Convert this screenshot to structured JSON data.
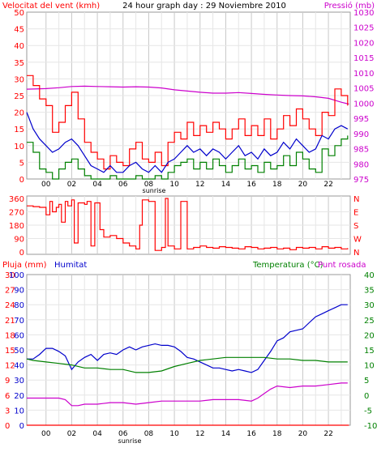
{
  "chart_data": [
    {
      "type": "line",
      "title": "24 hour graph day : 29 Noviembre 2010",
      "left_axis_label": "Velocitat del vent (kmh)",
      "right_axis_label": "Pressió (mb)",
      "left_ylim": [
        0,
        50
      ],
      "left_ticks": [
        "0",
        "5",
        "10",
        "15",
        "20",
        "25",
        "30",
        "35",
        "40",
        "45",
        "50"
      ],
      "right_ylim": [
        975,
        1030
      ],
      "right_ticks": [
        "975",
        "980",
        "985",
        "990",
        "995",
        "1000",
        "1005",
        "1010",
        "1015",
        "1020",
        "1025",
        "1030"
      ],
      "x_ticks": [
        "00",
        "02",
        "04",
        "06",
        "08",
        "10",
        "12",
        "14",
        "16",
        "18",
        "20",
        "22"
      ],
      "sunrise_label": "sunrise",
      "grid": true,
      "series": [
        {
          "axis": "right",
          "color": "#cc00cc",
          "x": [
            -1.5,
            0,
            1,
            2,
            3,
            4,
            5,
            6,
            7,
            8,
            9,
            10,
            11,
            12,
            13,
            14,
            15,
            16,
            17,
            18,
            19,
            20,
            21,
            22,
            23,
            23.6
          ],
          "y": [
            1004.6,
            1004.8,
            1005.1,
            1005.5,
            1005.6,
            1005.5,
            1005.4,
            1005.3,
            1005.4,
            1005.3,
            1005.0,
            1004.4,
            1004.0,
            1003.6,
            1003.3,
            1003.3,
            1003.5,
            1003.2,
            1002.9,
            1002.7,
            1002.5,
            1002.4,
            1002.1,
            1001.6,
            1000.3,
            999.7
          ]
        },
        {
          "axis": "left",
          "color": "#ff0000",
          "x": [
            -1.5,
            -1,
            -0.5,
            0,
            0.5,
            1,
            1.5,
            2,
            2.5,
            3,
            3.5,
            4,
            4.5,
            5,
            5.5,
            6,
            6.5,
            7,
            7.5,
            8,
            8.5,
            9,
            9.5,
            10,
            10.5,
            11,
            11.5,
            12,
            12.5,
            13,
            13.5,
            14,
            14.5,
            15,
            15.5,
            16,
            16.5,
            17,
            17.5,
            18,
            18.5,
            19,
            19.5,
            20,
            20.5,
            21,
            21.5,
            22,
            22.5,
            23,
            23.5
          ],
          "y": [
            31,
            28,
            24,
            22,
            14,
            17,
            22,
            26,
            18,
            11,
            8,
            6,
            3,
            7,
            5,
            4,
            9,
            11,
            6,
            5,
            8,
            4,
            11,
            14,
            12,
            17,
            13,
            16,
            14,
            17,
            15,
            12,
            15,
            18,
            13,
            16,
            13,
            18,
            12,
            15,
            19,
            16,
            21,
            18,
            15,
            13,
            20,
            19,
            27,
            25,
            22
          ]
        },
        {
          "axis": "left",
          "color": "#0000cc",
          "x": [
            -1.5,
            -1,
            -0.5,
            0,
            0.5,
            1,
            1.5,
            2,
            2.5,
            3,
            3.5,
            4,
            4.5,
            5,
            5.5,
            6,
            6.5,
            7,
            7.5,
            8,
            8.5,
            9,
            9.5,
            10,
            10.5,
            11,
            11.5,
            12,
            12.5,
            13,
            13.5,
            14,
            14.5,
            15,
            15.5,
            16,
            16.5,
            17,
            17.5,
            18,
            18.5,
            19,
            19.5,
            20,
            20.5,
            21,
            21.5,
            22,
            22.5,
            23,
            23.5
          ],
          "y": [
            20,
            15,
            12,
            10,
            8,
            9,
            11,
            12,
            10,
            7,
            4,
            3,
            2,
            4,
            2,
            2,
            4,
            5,
            3,
            2,
            4,
            2,
            5,
            6,
            8,
            10,
            8,
            9,
            7,
            9,
            8,
            6,
            8,
            10,
            7,
            8,
            6,
            9,
            7,
            8,
            11,
            9,
            12,
            10,
            8,
            9,
            13,
            12,
            15,
            16,
            15
          ]
        },
        {
          "axis": "left",
          "color": "#008000",
          "x": [
            -1.5,
            -1,
            -0.5,
            0,
            0.5,
            1,
            1.5,
            2,
            2.5,
            3,
            3.5,
            4,
            4.5,
            5,
            5.5,
            6,
            6.5,
            7,
            7.5,
            8,
            8.5,
            9,
            9.5,
            10,
            10.5,
            11,
            11.5,
            12,
            12.5,
            13,
            13.5,
            14,
            14.5,
            15,
            15.5,
            16,
            16.5,
            17,
            17.5,
            18,
            18.5,
            19,
            19.5,
            20,
            20.5,
            21,
            21.5,
            22,
            22.5,
            23,
            23.5
          ],
          "y": [
            11,
            8,
            3,
            2,
            0,
            3,
            5,
            6,
            3,
            1,
            0,
            0,
            0,
            1,
            0,
            0,
            0,
            1,
            0,
            0,
            1,
            0,
            2,
            4,
            5,
            6,
            3,
            5,
            3,
            6,
            4,
            2,
            4,
            6,
            3,
            4,
            2,
            5,
            3,
            4,
            7,
            4,
            8,
            6,
            3,
            2,
            9,
            7,
            10,
            12,
            13
          ]
        }
      ]
    },
    {
      "type": "line",
      "ylim": [
        0,
        360
      ],
      "left_ticks": [
        "0",
        "90",
        "180",
        "270",
        "360"
      ],
      "right_ticks": [
        "N",
        "W",
        "S",
        "E",
        "N"
      ],
      "series": [
        {
          "color": "#ff0000",
          "x": [
            -1.5,
            -1,
            -0.5,
            0,
            0.3,
            0.5,
            0.8,
            1,
            1.2,
            1.5,
            1.7,
            2,
            2.2,
            2.5,
            3,
            3.2,
            3.5,
            3.8,
            4.2,
            4.5,
            5,
            5.5,
            6,
            6.5,
            7,
            7.3,
            7.5,
            8,
            8.5,
            9,
            9.3,
            9.5,
            10,
            10.5,
            11,
            11.5,
            12,
            12.5,
            13,
            13.5,
            14,
            14.5,
            15,
            15.5,
            16,
            16.5,
            17,
            17.5,
            18,
            18.5,
            19,
            19.5,
            20,
            20.5,
            21,
            21.5,
            22,
            22.5,
            23,
            23.5
          ],
          "y": [
            310,
            305,
            300,
            250,
            340,
            270,
            300,
            320,
            200,
            340,
            310,
            350,
            60,
            330,
            320,
            340,
            40,
            330,
            150,
            100,
            110,
            90,
            60,
            40,
            20,
            180,
            350,
            340,
            10,
            30,
            360,
            40,
            20,
            340,
            20,
            30,
            40,
            30,
            25,
            35,
            30,
            25,
            20,
            35,
            30,
            20,
            25,
            30,
            20,
            25,
            15,
            30,
            25,
            30,
            20,
            35,
            25,
            30,
            20,
            25
          ]
        }
      ]
    },
    {
      "type": "line",
      "left_axis_label": "Pluja (mm)",
      "humidity_label": "Humitat",
      "right_axis_label": "Temperatura (°C)",
      "dewpoint_label": "Punt rosada",
      "pluja_ylim": [
        0,
        30
      ],
      "pluja_ticks": [
        "0",
        "3",
        "6",
        "9",
        "12",
        "15",
        "18",
        "21",
        "24",
        "27",
        "30"
      ],
      "humitat_ylim": [
        0,
        100
      ],
      "humitat_ticks": [
        "0",
        "10",
        "20",
        "30",
        "40",
        "50",
        "60",
        "70",
        "80",
        "90",
        "100"
      ],
      "temp_ylim": [
        -10,
        40
      ],
      "temp_ticks": [
        "-10",
        "-5",
        "0",
        "5",
        "10",
        "15",
        "20",
        "25",
        "30",
        "35",
        "40"
      ],
      "x_ticks": [
        "00",
        "02",
        "04",
        "06",
        "08",
        "10",
        "12",
        "14",
        "16",
        "18",
        "20",
        "22"
      ],
      "sunrise_label": "sunrise",
      "series": [
        {
          "axis": "humitat",
          "color": "#0000cc",
          "x": [
            -1.5,
            -1,
            -0.5,
            0,
            0.5,
            1,
            1.5,
            2,
            2.5,
            3,
            3.5,
            4,
            4.5,
            5,
            5.5,
            6,
            6.5,
            7,
            7.5,
            8,
            8.5,
            9,
            9.5,
            10,
            10.5,
            11,
            11.5,
            12,
            12.5,
            13,
            13.5,
            14,
            14.5,
            15,
            15.5,
            16,
            16.5,
            17,
            17.5,
            18,
            18.5,
            19,
            19.5,
            20,
            20.5,
            21,
            21.5,
            22,
            22.5,
            23,
            23.5
          ],
          "y": [
            44,
            44,
            47,
            51,
            51,
            49,
            46,
            37,
            42,
            45,
            47,
            43,
            47,
            48,
            47,
            50,
            52,
            50,
            52,
            53,
            54,
            53,
            53,
            52,
            49,
            45,
            44,
            42,
            40,
            38,
            38,
            37,
            36,
            37,
            36,
            35,
            37,
            43,
            49,
            56,
            58,
            62,
            63,
            64,
            68,
            72,
            74,
            76,
            78,
            80,
            80
          ]
        },
        {
          "axis": "temp",
          "color": "#008000",
          "x": [
            -1.5,
            -1,
            0,
            1,
            2,
            3,
            4,
            5,
            6,
            7,
            8,
            9,
            10,
            11,
            12,
            13,
            14,
            15,
            16,
            17,
            18,
            19,
            20,
            21,
            22,
            23,
            23.5
          ],
          "y": [
            12,
            11.5,
            11,
            10.5,
            10,
            9,
            9,
            8.5,
            8.5,
            7.5,
            7.5,
            8,
            9.5,
            10.5,
            11.5,
            12,
            12.5,
            12.5,
            12.5,
            12.5,
            12,
            12,
            11.5,
            11.5,
            11,
            11,
            11
          ]
        },
        {
          "axis": "temp",
          "color": "#cc00cc",
          "x": [
            -1.5,
            -1,
            0,
            1,
            1.5,
            2,
            2.5,
            3,
            4,
            5,
            6,
            7,
            8,
            9,
            10,
            11,
            12,
            13,
            14,
            15,
            16,
            16.5,
            17,
            17.5,
            18,
            19,
            20,
            21,
            22,
            23,
            23.5
          ],
          "y": [
            -1,
            -1,
            -1,
            -1,
            -1.5,
            -3.5,
            -3.5,
            -3,
            -3,
            -2.5,
            -2.5,
            -3,
            -2.5,
            -2,
            -2,
            -2,
            -2,
            -1.5,
            -1.5,
            -1.5,
            -2,
            -1,
            0.5,
            2,
            3,
            2.5,
            3,
            3,
            3.5,
            4,
            4
          ]
        },
        {
          "axis": "pluja",
          "color": "#ff0000",
          "x": [
            -1.5,
            23.6
          ],
          "y": [
            0,
            0
          ]
        }
      ]
    }
  ]
}
